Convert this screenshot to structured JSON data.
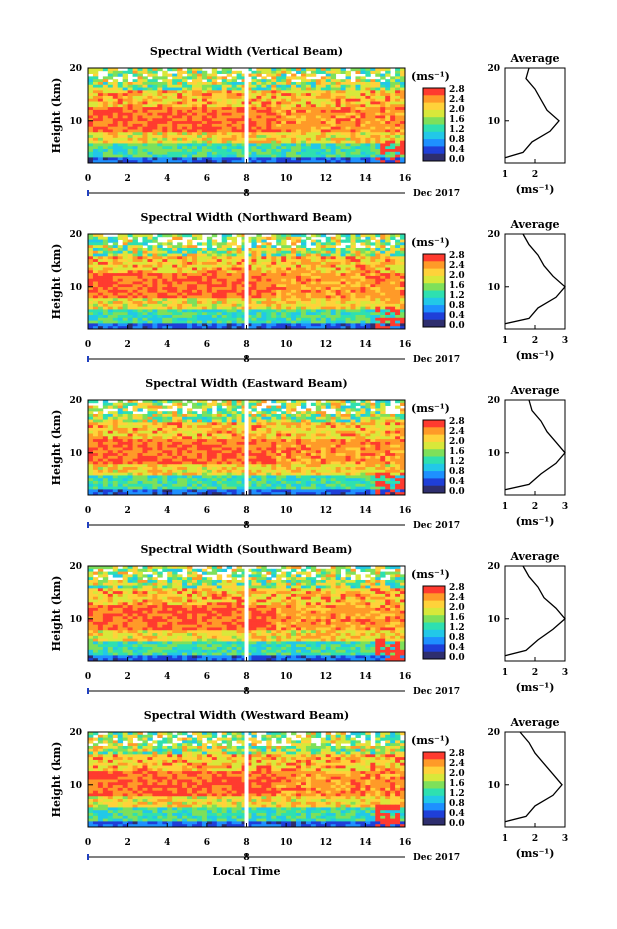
{
  "chart_data": [
    {
      "type": "heatmap",
      "title": "Spectral Width (Vertical Beam)",
      "ylabel": "Height (km)",
      "xlabel": "",
      "xlim": [
        0,
        16
      ],
      "ylim": [
        2,
        20
      ],
      "xticks": [
        "0",
        "2",
        "4",
        "6",
        "8",
        "10",
        "12",
        "14",
        "16"
      ],
      "yticks": [
        "20",
        "10"
      ],
      "date_tick": "8",
      "date_label": "Dec 2017",
      "colorbar": {
        "unit": "(ms⁻¹)",
        "range": [
          0.0,
          2.8
        ],
        "ticks": [
          "2.8",
          "2.4",
          "2.0",
          "1.6",
          "1.2",
          "0.8",
          "0.4",
          "0.0"
        ]
      },
      "average": {
        "title": "Average",
        "xlabel": "(ms⁻¹)",
        "xticks": [
          "1",
          "2"
        ],
        "yticks": [
          "20",
          "10"
        ],
        "xlim": [
          1,
          3
        ],
        "ylim": [
          2,
          20
        ],
        "height": [
          3,
          4,
          6,
          8,
          10,
          12,
          14,
          16,
          18,
          20
        ],
        "width": [
          1.0,
          1.6,
          1.9,
          2.5,
          2.8,
          2.4,
          2.2,
          2.0,
          1.7,
          1.8
        ]
      }
    },
    {
      "type": "heatmap",
      "title": "Spectral Width (Northward Beam)",
      "ylabel": "Height (km)",
      "xlabel": "",
      "xlim": [
        0,
        16
      ],
      "ylim": [
        2,
        20
      ],
      "xticks": [
        "0",
        "2",
        "4",
        "6",
        "8",
        "10",
        "12",
        "14",
        "16"
      ],
      "yticks": [
        "20",
        "10"
      ],
      "date_tick": "8",
      "date_label": "Dec 2017",
      "colorbar": {
        "unit": "(ms⁻¹)",
        "range": [
          0.0,
          2.8
        ],
        "ticks": [
          "2.8",
          "2.4",
          "2.0",
          "1.6",
          "1.2",
          "0.8",
          "0.4",
          "0.0"
        ]
      },
      "average": {
        "title": "Average",
        "xlabel": "(ms⁻¹)",
        "xticks": [
          "1",
          "2",
          "3"
        ],
        "yticks": [
          "20",
          "10"
        ],
        "xlim": [
          1,
          3
        ],
        "ylim": [
          2,
          20
        ],
        "height": [
          3,
          4,
          6,
          8,
          10,
          12,
          14,
          16,
          18,
          20
        ],
        "width": [
          1.0,
          1.8,
          2.1,
          2.7,
          3.0,
          2.6,
          2.3,
          2.1,
          1.8,
          1.6
        ]
      }
    },
    {
      "type": "heatmap",
      "title": "Spectral Width (Eastward Beam)",
      "ylabel": "Height (km)",
      "xlabel": "",
      "xlim": [
        0,
        16
      ],
      "ylim": [
        2,
        20
      ],
      "xticks": [
        "0",
        "2",
        "4",
        "6",
        "8",
        "10",
        "12",
        "14",
        "16"
      ],
      "yticks": [
        "20",
        "10"
      ],
      "date_tick": "8",
      "date_label": "Dec 2017",
      "colorbar": {
        "unit": "(ms⁻¹)",
        "range": [
          0.0,
          2.8
        ],
        "ticks": [
          "2.8",
          "2.4",
          "2.0",
          "1.6",
          "1.2",
          "0.8",
          "0.4",
          "0.0"
        ]
      },
      "average": {
        "title": "Average",
        "xlabel": "(ms⁻¹)",
        "xticks": [
          "1",
          "2",
          "3"
        ],
        "yticks": [
          "20",
          "10"
        ],
        "xlim": [
          1,
          3
        ],
        "ylim": [
          2,
          20
        ],
        "height": [
          3,
          4,
          6,
          8,
          10,
          12,
          14,
          16,
          18,
          20
        ],
        "width": [
          1.0,
          1.8,
          2.2,
          2.7,
          3.0,
          2.7,
          2.4,
          2.2,
          1.9,
          1.8
        ]
      }
    },
    {
      "type": "heatmap",
      "title": "Spectral Width (Southward Beam)",
      "ylabel": "Height (km)",
      "xlabel": "",
      "xlim": [
        0,
        16
      ],
      "ylim": [
        2,
        20
      ],
      "xticks": [
        "0",
        "2",
        "4",
        "6",
        "8",
        "10",
        "12",
        "14",
        "16"
      ],
      "yticks": [
        "20",
        "10"
      ],
      "date_tick": "8",
      "date_label": "Dec 2017",
      "colorbar": {
        "unit": "(ms⁻¹)",
        "range": [
          0.0,
          2.8
        ],
        "ticks": [
          "2.8",
          "2.4",
          "2.0",
          "1.6",
          "1.2",
          "0.8",
          "0.4",
          "0.0"
        ]
      },
      "average": {
        "title": "Average",
        "xlabel": "(ms⁻¹)",
        "xticks": [
          "1",
          "2",
          "3"
        ],
        "yticks": [
          "20",
          "10"
        ],
        "xlim": [
          1,
          3
        ],
        "ylim": [
          2,
          20
        ],
        "height": [
          3,
          4,
          6,
          8,
          10,
          12,
          14,
          16,
          18,
          20
        ],
        "width": [
          1.0,
          1.7,
          2.1,
          2.6,
          3.0,
          2.7,
          2.3,
          2.1,
          1.8,
          1.6
        ]
      }
    },
    {
      "type": "heatmap",
      "title": "Spectral Width (Westward Beam)",
      "ylabel": "Height (km)",
      "xlabel": "Local Time",
      "xlim": [
        0,
        16
      ],
      "ylim": [
        2,
        20
      ],
      "xticks": [
        "0",
        "2",
        "4",
        "6",
        "8",
        "10",
        "12",
        "14",
        "16"
      ],
      "yticks": [
        "20",
        "10"
      ],
      "date_tick": "8",
      "date_label": "Dec 2017",
      "colorbar": {
        "unit": "(ms⁻¹)",
        "range": [
          0.0,
          2.8
        ],
        "ticks": [
          "2.8",
          "2.4",
          "2.0",
          "1.6",
          "1.2",
          "0.8",
          "0.4",
          "0.0"
        ]
      },
      "average": {
        "title": "Average",
        "xlabel": "(ms⁻¹)",
        "xticks": [
          "1",
          "2",
          "3"
        ],
        "yticks": [
          "20",
          "10"
        ],
        "xlim": [
          1,
          3
        ],
        "ylim": [
          2,
          20
        ],
        "height": [
          3,
          4,
          6,
          8,
          10,
          12,
          14,
          16,
          18,
          20
        ],
        "width": [
          1.0,
          1.7,
          2.0,
          2.6,
          2.9,
          2.6,
          2.3,
          2.0,
          1.8,
          1.5
        ]
      }
    }
  ],
  "colors": {
    "scale": [
      "#2e2e6e",
      "#1f3fd8",
      "#1e90ff",
      "#22c8e8",
      "#2ee0b0",
      "#7ee05a",
      "#d8e83a",
      "#ffd23a",
      "#ff9a28",
      "#ff3b2f"
    ],
    "axis": "#000000"
  }
}
